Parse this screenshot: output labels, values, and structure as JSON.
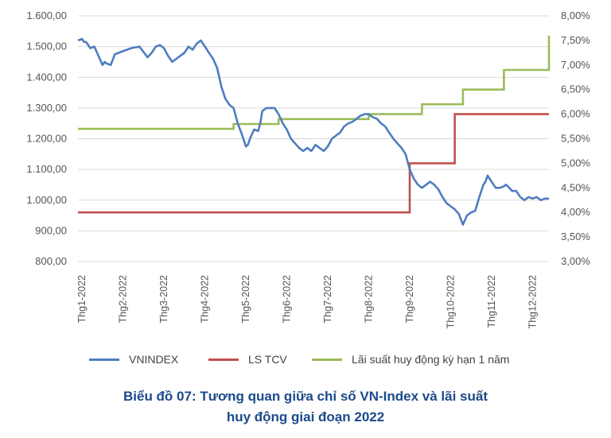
{
  "caption": {
    "line1": "Biểu đồ 07: Tương quan giữa chỉ số VN-Index và lãi suất",
    "line2": "huy động giai đoạn 2022"
  },
  "colors": {
    "vnindex": "#4f7dbf",
    "ls_tcv": "#c0504d",
    "lai_suat": "#9bbb59",
    "grid": "#d9d9d9"
  },
  "chart_data": {
    "type": "line",
    "title": "Biểu đồ 07: Tương quan giữa chỉ số VN-Index và lãi suất huy động giai đoạn 2022",
    "x_ticks": [
      "Thg1-2022",
      "Thg2-2022",
      "Thg3-2022",
      "Thg4-2022",
      "Thg5-2022",
      "Thg6-2022",
      "Thg7-2022",
      "Thg8-2022",
      "Thg9-2022",
      "Thg10-2022",
      "Thg11-2022",
      "Thg12-2022"
    ],
    "x_unit": "month (1 = Thg1-2022)",
    "left_axis": {
      "ylim": [
        800,
        1600
      ],
      "ticks": [
        800,
        900,
        1000,
        1100,
        1200,
        1300,
        1400,
        1500,
        1600
      ],
      "tick_labels": [
        "800,00",
        "900,00",
        "1.000,00",
        "1.100,00",
        "1.200,00",
        "1.300,00",
        "1.400,00",
        "1.500,00",
        "1.600,00"
      ]
    },
    "right_axis": {
      "ylim": [
        3.0,
        8.0
      ],
      "ticks": [
        3.0,
        3.5,
        4.0,
        4.5,
        5.0,
        5.5,
        6.0,
        6.5,
        7.0,
        7.5,
        8.0
      ],
      "tick_labels": [
        "3,00%",
        "3,50%",
        "4,00%",
        "4,50%",
        "5,00%",
        "5,50%",
        "6,00%",
        "6,50%",
        "7,00%",
        "7,50%",
        "8,00%"
      ]
    },
    "grid": true,
    "legend_position": "bottom",
    "series": [
      {
        "name": "VNINDEX",
        "axis": "left",
        "x": [
          0.9,
          1.0,
          1.05,
          1.1,
          1.2,
          1.3,
          1.4,
          1.5,
          1.55,
          1.6,
          1.7,
          1.8,
          2.0,
          2.2,
          2.4,
          2.6,
          2.7,
          2.75,
          2.8,
          2.9,
          3.0,
          3.1,
          3.2,
          3.3,
          3.4,
          3.5,
          3.6,
          3.7,
          3.8,
          3.9,
          4.0,
          4.1,
          4.2,
          4.3,
          4.35,
          4.4,
          4.5,
          4.6,
          4.7,
          4.8,
          4.9,
          5.0,
          5.05,
          5.1,
          5.2,
          5.3,
          5.35,
          5.4,
          5.5,
          5.6,
          5.7,
          5.8,
          5.9,
          6.0,
          6.1,
          6.2,
          6.3,
          6.4,
          6.5,
          6.6,
          6.7,
          6.8,
          6.9,
          7.0,
          7.1,
          7.2,
          7.3,
          7.4,
          7.5,
          7.6,
          7.7,
          7.8,
          7.9,
          8.0,
          8.1,
          8.2,
          8.3,
          8.4,
          8.5,
          8.6,
          8.7,
          8.8,
          8.9,
          9.0,
          9.1,
          9.2,
          9.3,
          9.4,
          9.5,
          9.6,
          9.7,
          9.8,
          9.9,
          10.0,
          10.1,
          10.2,
          10.3,
          10.4,
          10.5,
          10.6,
          10.7,
          10.8,
          10.85,
          10.9,
          11.0,
          11.1,
          11.2,
          11.3,
          11.35,
          11.4,
          11.5,
          11.6,
          11.7,
          11.8,
          11.9,
          12.0,
          12.1,
          12.2,
          12.3,
          12.4
        ],
        "values": [
          1520,
          1525,
          1515,
          1515,
          1495,
          1500,
          1470,
          1440,
          1450,
          1445,
          1440,
          1475,
          1485,
          1495,
          1500,
          1465,
          1480,
          1490,
          1500,
          1505,
          1495,
          1470,
          1450,
          1460,
          1470,
          1480,
          1500,
          1490,
          1510,
          1520,
          1500,
          1480,
          1460,
          1430,
          1400,
          1370,
          1330,
          1310,
          1300,
          1250,
          1215,
          1175,
          1180,
          1200,
          1230,
          1225,
          1250,
          1290,
          1300,
          1300,
          1300,
          1280,
          1250,
          1230,
          1200,
          1185,
          1170,
          1160,
          1170,
          1160,
          1180,
          1170,
          1160,
          1175,
          1200,
          1210,
          1220,
          1240,
          1250,
          1255,
          1265,
          1275,
          1280,
          1280,
          1270,
          1265,
          1250,
          1240,
          1220,
          1200,
          1185,
          1170,
          1150,
          1100,
          1070,
          1050,
          1040,
          1050,
          1060,
          1050,
          1035,
          1010,
          990,
          980,
          970,
          955,
          920,
          950,
          960,
          965,
          1010,
          1050,
          1060,
          1080,
          1060,
          1040,
          1040,
          1045,
          1050,
          1045,
          1030,
          1030,
          1010,
          1000,
          1010,
          1005,
          1010,
          1000,
          1005,
          1005
        ],
        "points": [
          [
            0.95,
            1523
          ],
          [
            1.0,
            1525
          ],
          [
            1.1,
            1505
          ],
          [
            1.3,
            1470
          ],
          [
            1.45,
            1440
          ],
          [
            1.7,
            1475
          ],
          [
            2.0,
            1490
          ],
          [
            2.5,
            1500
          ],
          [
            2.8,
            1500
          ],
          [
            3.2,
            1450
          ],
          [
            3.5,
            1485
          ],
          [
            3.8,
            1520
          ],
          [
            4.1,
            1490
          ],
          [
            4.3,
            1430
          ],
          [
            4.5,
            1320
          ],
          [
            4.8,
            1250
          ],
          [
            5.0,
            1180
          ],
          [
            5.3,
            1240
          ],
          [
            5.5,
            1300
          ],
          [
            5.8,
            1280
          ],
          [
            6.0,
            1250
          ],
          [
            6.3,
            1175
          ],
          [
            6.5,
            1170
          ],
          [
            6.8,
            1165
          ],
          [
            7.0,
            1180
          ],
          [
            7.3,
            1230
          ],
          [
            7.5,
            1265
          ],
          [
            8.0,
            1280
          ],
          [
            8.3,
            1260
          ],
          [
            8.6,
            1230
          ],
          [
            8.8,
            1190
          ],
          [
            9.0,
            1140
          ],
          [
            9.2,
            1090
          ],
          [
            9.5,
            1050
          ],
          [
            9.8,
            1030
          ],
          [
            10.0,
            980
          ],
          [
            10.2,
            960
          ],
          [
            10.4,
            915
          ],
          [
            10.6,
            960
          ],
          [
            10.8,
            1060
          ],
          [
            11.0,
            1090
          ],
          [
            11.2,
            1050
          ],
          [
            11.5,
            1045
          ],
          [
            11.8,
            1020
          ],
          [
            12.0,
            990
          ],
          [
            12.2,
            1005
          ],
          [
            12.4,
            1005
          ]
        ]
      },
      {
        "name": "LS TCV",
        "axis": "right",
        "steps": [
          [
            0.9,
            4.0
          ],
          [
            9.0,
            5.0
          ],
          [
            10.1,
            6.0
          ],
          [
            12.4,
            6.0
          ]
        ]
      },
      {
        "name": "Lãi suất huy động kỳ hạn 1 năm",
        "axis": "right",
        "steps": [
          [
            0.9,
            5.7
          ],
          [
            4.7,
            5.8
          ],
          [
            5.8,
            5.9
          ],
          [
            8.0,
            6.0
          ],
          [
            9.3,
            6.2
          ],
          [
            10.3,
            6.5
          ],
          [
            11.3,
            6.9
          ],
          [
            12.35,
            6.9
          ],
          [
            12.4,
            7.6
          ]
        ]
      }
    ]
  }
}
